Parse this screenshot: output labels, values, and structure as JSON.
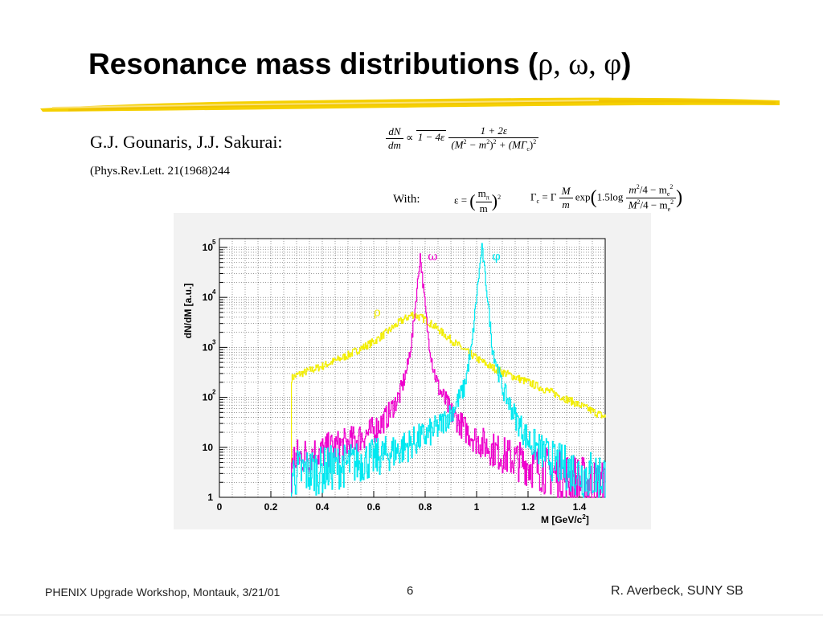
{
  "slide": {
    "title": "Resonance mass distributions (",
    "title_greek": "ρ, ω, φ",
    "title_close": ")",
    "author": "G.J. Gounaris, J.J. Sakurai:",
    "reference": "(Phys.Rev.Lett. 21(1968)244",
    "with_label": "With:",
    "footer_left": "PHENIX Upgrade Workshop, Montauk, 3/21/01",
    "footer_page": "6",
    "footer_right": "R. Averbeck, SUNY SB",
    "accent_color": "#f5d000"
  },
  "formula": {
    "dndm": "dN",
    "dm": "dm",
    "prop": "∝",
    "sqrt_arg": "1 − 4ε",
    "numerator": "1 + 2ε",
    "den_a": "(M",
    "den_b": " − m",
    "den_c": ")",
    "den_d": " + (MΓ",
    "den_e": ")",
    "sup2": "2",
    "sub_c": "c",
    "eps_lhs": "ε =",
    "eps_num": "m",
    "eps_sub": "π",
    "eps_den": "m",
    "gamma_lhs": "Γ",
    "gamma_eq": " = Γ",
    "gamma_M": "M",
    "gamma_m": "m",
    "exp_text": "exp",
    "log_text": "1.5log",
    "log_num_a": "m",
    "log_num_b": "/4 − m",
    "log_den_a": "M",
    "log_den_b": "/4 − m",
    "sub_e": "e"
  },
  "chart_data": {
    "type": "line",
    "xlabel": "M [GeV/c",
    "xlabel_sup": "2",
    "xlabel_close": "]",
    "ylabel": "dN/dM [a.u.]",
    "x_scale": "linear",
    "y_scale": "log",
    "xlim": [
      0,
      1.5
    ],
    "ylim": [
      1,
      150000
    ],
    "x_ticks": [
      "0",
      "0.2",
      "0.4",
      "0.6",
      "0.8",
      "1",
      "1.2",
      "1.4"
    ],
    "y_ticks": [
      "1",
      "10",
      "10",
      "10",
      "10",
      "10"
    ],
    "y_tick_exponents": [
      "",
      "",
      "2",
      "3",
      "4",
      "5"
    ],
    "grid": true,
    "series": [
      {
        "name": "ρ",
        "color": "#f2ee00",
        "x": [
          0.28,
          0.3,
          0.4,
          0.5,
          0.6,
          0.65,
          0.7,
          0.75,
          0.8,
          0.85,
          0.9,
          0.95,
          1.0,
          1.05,
          1.1,
          1.2,
          1.3,
          1.4,
          1.5
        ],
        "y": [
          240,
          280,
          420,
          700,
          1300,
          2000,
          3200,
          4600,
          3600,
          2300,
          1400,
          900,
          600,
          420,
          320,
          200,
          120,
          70,
          40
        ]
      },
      {
        "name": "ω",
        "color": "#ee00cc",
        "x": [
          0.28,
          0.4,
          0.5,
          0.6,
          0.65,
          0.7,
          0.73,
          0.75,
          0.77,
          0.78,
          0.79,
          0.81,
          0.83,
          0.85,
          0.9,
          0.95,
          1.0,
          1.1,
          1.2,
          1.3,
          1.4,
          1.5
        ],
        "y": [
          6,
          8,
          12,
          22,
          40,
          110,
          400,
          1800,
          20000,
          70000,
          20000,
          1800,
          400,
          160,
          50,
          24,
          14,
          7,
          4.5,
          3,
          2,
          1.5
        ]
      },
      {
        "name": "φ",
        "color": "#00e8f0",
        "x": [
          0.28,
          0.4,
          0.5,
          0.6,
          0.7,
          0.8,
          0.85,
          0.9,
          0.95,
          0.98,
          1.0,
          1.01,
          1.02,
          1.03,
          1.04,
          1.06,
          1.1,
          1.15,
          1.2,
          1.3,
          1.4,
          1.5
        ],
        "y": [
          3,
          3.5,
          4.5,
          6,
          9,
          17,
          25,
          48,
          150,
          1000,
          12000,
          35000,
          100000,
          35000,
          12000,
          1000,
          150,
          40,
          14,
          5,
          3,
          2.5
        ]
      }
    ]
  }
}
